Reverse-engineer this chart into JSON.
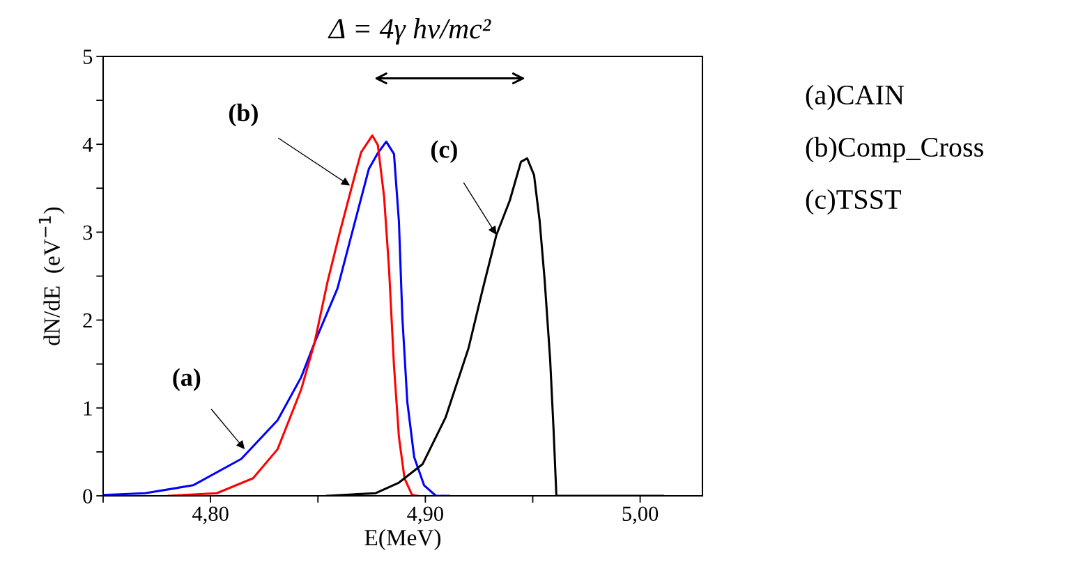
{
  "chart_data": {
    "type": "line",
    "title": "Δ = 4γ hν/mc²",
    "xlabel": "E(MeV)",
    "ylabel": "dN/dE  (eV$^{−1}$)",
    "xlim": [
      4.75,
      5.029
    ],
    "ylim": [
      0,
      5
    ],
    "xticks": [
      {
        "value": 4.75,
        "label": null
      },
      {
        "value": 4.8,
        "label": "4,80"
      },
      {
        "value": 4.85,
        "label": null
      },
      {
        "value": 4.9,
        "label": "4,90"
      },
      {
        "value": 4.95,
        "label": null
      },
      {
        "value": 5.0,
        "label": "5,00"
      }
    ],
    "yticks": [
      0,
      {
        "value": 0.5,
        "label": null
      },
      1,
      {
        "value": 1.5,
        "label": null
      },
      2,
      {
        "value": 2.5,
        "label": null
      },
      3,
      {
        "value": 3.5,
        "label": null
      },
      4,
      {
        "value": 4.5,
        "label": null
      },
      5
    ],
    "grid": false,
    "legend": false,
    "marker": "none",
    "line_style": "solid",
    "series": [
      {
        "color": "#0000ff",
        "x": [
          4.7503,
          4.7695,
          4.7919,
          4.8143,
          4.8312,
          4.8422,
          4.8484,
          4.8591,
          4.8679,
          4.8737,
          4.8779,
          4.8818,
          4.8854,
          4.8877,
          4.8893,
          4.8916,
          4.8948,
          4.8994,
          4.9049,
          4.911
        ],
        "values": [
          0.01,
          0.03,
          0.12,
          0.42,
          0.86,
          1.35,
          1.74,
          2.36,
          3.18,
          3.72,
          3.9,
          4.03,
          3.89,
          3.12,
          2.03,
          1.07,
          0.44,
          0.12,
          0,
          0
        ]
      },
      {
        "color": "#ff0000",
        "x": [
          4.7805,
          4.8029,
          4.8198,
          4.8312,
          4.8422,
          4.8484,
          4.8545,
          4.8601,
          4.8659,
          4.8701,
          4.8753,
          4.8779,
          4.8808,
          4.8831,
          4.8854,
          4.8877,
          4.8903,
          4.8938,
          4.8964
        ],
        "values": [
          0,
          0.03,
          0.2,
          0.53,
          1.21,
          1.74,
          2.44,
          2.99,
          3.53,
          3.91,
          4.1,
          3.99,
          3.4,
          2.58,
          1.48,
          0.67,
          0.2,
          0.01,
          0
        ]
      },
      {
        "color": "#000000",
        "x": [
          4.8542,
          4.8769,
          4.8877,
          4.8987,
          4.9094,
          4.9201,
          4.9266,
          4.9331,
          4.9393,
          4.9445,
          4.9474,
          4.9506,
          4.9532,
          4.9555,
          4.9581,
          4.9597,
          4.961,
          5.0107
        ],
        "values": [
          0,
          0.03,
          0.15,
          0.36,
          0.89,
          1.68,
          2.34,
          2.97,
          3.36,
          3.8,
          3.84,
          3.65,
          3.13,
          2.47,
          1.55,
          0.75,
          0,
          0
        ]
      }
    ],
    "annotations": [
      {
        "text": "(a)",
        "x": 4.8159,
        "y": 0.53
      },
      {
        "text": "(b)",
        "x": 4.8649,
        "y": 3.53
      },
      {
        "text": "(c)",
        "x": 4.9331,
        "y": 2.97
      },
      "(a)CAIN",
      "(b)Comp_Cross",
      "(c)TSST"
    ]
  }
}
